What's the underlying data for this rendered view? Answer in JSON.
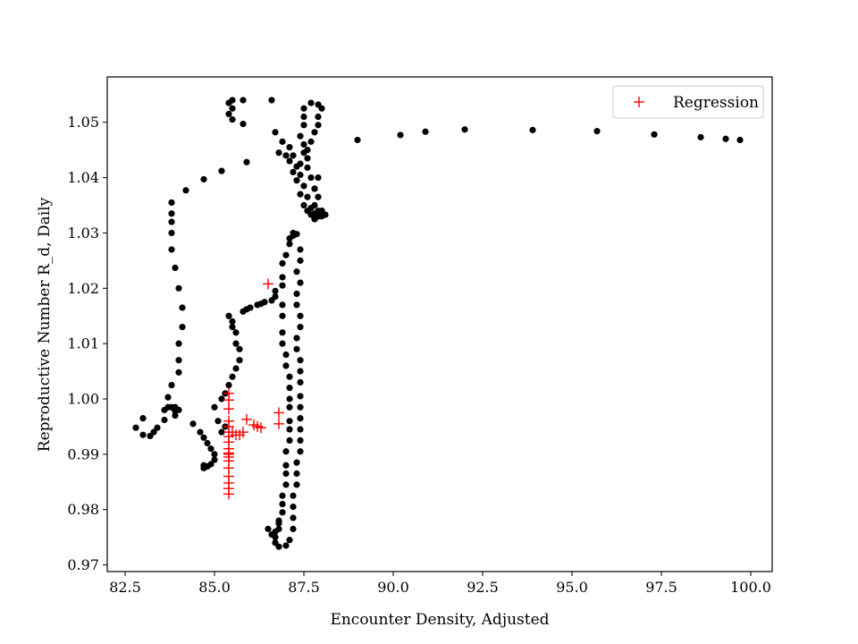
{
  "chart_data": {
    "type": "scatter",
    "title": "",
    "xlabel": "Encounter Density, Adjusted",
    "ylabel": "Reproductive Number R_d, Daily",
    "xlim": [
      82.0,
      100.6
    ],
    "ylim": [
      0.9688,
      1.0582
    ],
    "xticks": [
      82.5,
      85.0,
      87.5,
      90.0,
      92.5,
      95.0,
      97.5,
      100.0
    ],
    "yticks": [
      0.97,
      0.98,
      0.99,
      1.0,
      1.01,
      1.02,
      1.03,
      1.04,
      1.05
    ],
    "xtick_labels": [
      "82.5",
      "85.0",
      "87.5",
      "90.0",
      "92.5",
      "95.0",
      "97.5",
      "100.0"
    ],
    "ytick_labels": [
      "0.97",
      "0.98",
      "0.99",
      "1.00",
      "1.01",
      "1.02",
      "1.03",
      "1.04",
      "1.05"
    ],
    "grid": false,
    "legend": {
      "placement": "top-right",
      "entries": [
        "Regression"
      ]
    },
    "series": [
      {
        "name": "",
        "marker": "dot",
        "color": "#000000",
        "points": [
          [
            82.8,
            0.9948
          ],
          [
            83.0,
            0.9965
          ],
          [
            83.0,
            0.9935
          ],
          [
            83.2,
            0.9933
          ],
          [
            83.3,
            0.994
          ],
          [
            83.4,
            0.9948
          ],
          [
            83.6,
            0.9962
          ],
          [
            83.6,
            0.998
          ],
          [
            83.7,
            0.9985
          ],
          [
            83.7,
            1.0003
          ],
          [
            83.8,
            0.9985
          ],
          [
            83.9,
            0.9978
          ],
          [
            83.9,
            0.997
          ],
          [
            83.9,
            0.9985
          ],
          [
            84.0,
            0.998
          ],
          [
            83.8,
            1.0025
          ],
          [
            84.0,
            1.0048
          ],
          [
            84.0,
            1.007
          ],
          [
            84.0,
            1.01
          ],
          [
            84.1,
            1.013
          ],
          [
            84.1,
            1.0165
          ],
          [
            84.0,
            1.02
          ],
          [
            83.9,
            1.0237
          ],
          [
            83.8,
            1.027
          ],
          [
            83.8,
            1.03
          ],
          [
            83.8,
            1.032
          ],
          [
            83.8,
            1.0335
          ],
          [
            83.8,
            1.0355
          ],
          [
            84.2,
            1.0377
          ],
          [
            84.7,
            1.0397
          ],
          [
            85.2,
            1.0412
          ],
          [
            85.9,
            1.0428
          ],
          [
            84.4,
            0.9955
          ],
          [
            84.6,
            0.994
          ],
          [
            84.7,
            0.993
          ],
          [
            84.8,
            0.992
          ],
          [
            84.9,
            0.991
          ],
          [
            85.0,
            0.99
          ],
          [
            85.0,
            0.989
          ],
          [
            84.7,
            0.988
          ],
          [
            84.8,
            0.9878
          ],
          [
            84.9,
            0.9882
          ],
          [
            84.7,
            0.9875
          ],
          [
            85.0,
            0.9985
          ],
          [
            85.1,
            0.996
          ],
          [
            85.2,
            0.994
          ],
          [
            85.3,
            0.995
          ],
          [
            85.2,
            1.0
          ],
          [
            85.3,
            1.001
          ],
          [
            85.4,
            1.0025
          ],
          [
            85.5,
            1.004
          ],
          [
            85.6,
            1.0055
          ],
          [
            85.7,
            1.007
          ],
          [
            85.7,
            1.009
          ],
          [
            85.6,
            1.01
          ],
          [
            85.6,
            1.012
          ],
          [
            85.5,
            1.013
          ],
          [
            85.5,
            1.014
          ],
          [
            85.4,
            1.015
          ],
          [
            85.8,
            1.0158
          ],
          [
            85.9,
            1.0162
          ],
          [
            86.0,
            1.0165
          ],
          [
            86.2,
            1.017
          ],
          [
            86.3,
            1.0172
          ],
          [
            86.4,
            1.0175
          ],
          [
            86.6,
            1.0178
          ],
          [
            86.7,
            1.0185
          ],
          [
            86.7,
            1.0195
          ],
          [
            86.9,
            1.0205
          ],
          [
            86.9,
            1.022
          ],
          [
            86.9,
            1.0245
          ],
          [
            87.0,
            1.026
          ],
          [
            87.1,
            1.028
          ],
          [
            87.2,
            1.0295
          ],
          [
            87.3,
            1.0298
          ],
          [
            87.2,
            1.03
          ],
          [
            87.1,
            1.029
          ],
          [
            87.4,
            1.027
          ],
          [
            87.4,
            1.025
          ],
          [
            87.3,
            1.023
          ],
          [
            87.4,
            1.021
          ],
          [
            87.3,
            1.019
          ],
          [
            87.3,
            1.017
          ],
          [
            87.4,
            1.015
          ],
          [
            87.4,
            1.013
          ],
          [
            87.3,
            1.011
          ],
          [
            87.3,
            1.009
          ],
          [
            87.4,
            1.007
          ],
          [
            87.4,
            1.005
          ],
          [
            87.4,
            1.003
          ],
          [
            87.4,
            1.0005
          ],
          [
            87.4,
            0.9985
          ],
          [
            87.4,
            0.9965
          ],
          [
            87.4,
            0.9945
          ],
          [
            87.4,
            0.9925
          ],
          [
            87.4,
            0.9905
          ],
          [
            87.3,
            0.9885
          ],
          [
            87.3,
            0.9865
          ],
          [
            87.3,
            0.9845
          ],
          [
            87.2,
            0.9825
          ],
          [
            87.2,
            0.9805
          ],
          [
            87.2,
            0.9785
          ],
          [
            87.2,
            0.9765
          ],
          [
            87.1,
            0.9745
          ],
          [
            87.0,
            0.9735
          ],
          [
            86.8,
            0.9733
          ],
          [
            86.7,
            0.974
          ],
          [
            86.6,
            0.9755
          ],
          [
            86.5,
            0.9765
          ],
          [
            86.7,
            0.976
          ],
          [
            86.8,
            0.9775
          ],
          [
            86.9,
            1.017
          ],
          [
            86.9,
            1.015
          ],
          [
            86.9,
            1.012
          ],
          [
            86.9,
            1.01
          ],
          [
            87.0,
            1.008
          ],
          [
            87.0,
            1.006
          ],
          [
            87.1,
            1.004
          ],
          [
            87.1,
            1.002
          ],
          [
            87.1,
            1.0
          ],
          [
            87.1,
            0.9985
          ],
          [
            87.1,
            0.996
          ],
          [
            87.1,
            0.9945
          ],
          [
            87.1,
            0.9925
          ],
          [
            87.0,
            0.9905
          ],
          [
            87.0,
            0.988
          ],
          [
            87.0,
            0.9865
          ],
          [
            87.0,
            0.9845
          ],
          [
            86.9,
            0.9825
          ],
          [
            86.9,
            0.981
          ],
          [
            86.9,
            0.9795
          ],
          [
            86.8,
            0.978
          ],
          [
            86.8,
            0.9765
          ],
          [
            86.7,
            0.975
          ],
          [
            85.4,
            1.0535
          ],
          [
            85.5,
            1.0525
          ],
          [
            85.4,
            1.0515
          ],
          [
            85.5,
            1.0505
          ],
          [
            85.5,
            1.054
          ],
          [
            85.8,
            1.054
          ],
          [
            85.8,
            1.0497
          ],
          [
            86.6,
            1.054
          ],
          [
            86.7,
            1.0482
          ],
          [
            86.8,
            1.0445
          ],
          [
            87.0,
            1.044
          ],
          [
            87.1,
            1.043
          ],
          [
            87.2,
            1.041
          ],
          [
            87.3,
            1.0395
          ],
          [
            87.4,
            1.037
          ],
          [
            87.5,
            1.035
          ],
          [
            87.6,
            1.034
          ],
          [
            87.7,
            1.0333
          ],
          [
            87.8,
            1.0325
          ],
          [
            87.8,
            1.0335
          ],
          [
            87.9,
            1.033
          ],
          [
            88.0,
            1.034
          ],
          [
            87.5,
            1.0525
          ],
          [
            87.5,
            1.051
          ],
          [
            87.5,
            1.0495
          ],
          [
            87.4,
            1.0475
          ],
          [
            87.5,
            1.046
          ],
          [
            87.5,
            1.0445
          ],
          [
            87.4,
            1.0425
          ],
          [
            87.4,
            1.0405
          ],
          [
            87.5,
            1.0385
          ],
          [
            87.6,
            1.0365
          ],
          [
            87.7,
            1.0345
          ],
          [
            87.8,
            1.0325
          ],
          [
            86.9,
            1.0465
          ],
          [
            87.1,
            1.0455
          ],
          [
            87.2,
            1.044
          ],
          [
            87.3,
            1.042
          ],
          [
            87.7,
            1.0535
          ],
          [
            87.9,
            1.0532
          ],
          [
            88.0,
            1.0525
          ],
          [
            87.9,
            1.051
          ],
          [
            87.9,
            1.0495
          ],
          [
            87.8,
            1.0482
          ],
          [
            87.7,
            1.0465
          ],
          [
            87.6,
            1.045
          ],
          [
            87.6,
            1.0435
          ],
          [
            87.6,
            1.0418
          ],
          [
            87.7,
            1.04
          ],
          [
            87.8,
            1.038
          ],
          [
            87.9,
            1.0365
          ],
          [
            87.8,
            1.035
          ],
          [
            87.9,
            1.034
          ],
          [
            88.0,
            1.033
          ],
          [
            88.1,
            1.0333
          ],
          [
            87.9,
            1.04
          ],
          [
            87.8,
            1.038
          ],
          [
            88.0,
            1.034
          ],
          [
            89.0,
            1.0468
          ],
          [
            90.2,
            1.0477
          ],
          [
            90.9,
            1.0483
          ],
          [
            92.0,
            1.0487
          ],
          [
            93.9,
            1.0486
          ],
          [
            95.7,
            1.0484
          ],
          [
            97.3,
            1.0478
          ],
          [
            98.6,
            1.0473
          ],
          [
            99.3,
            1.047
          ],
          [
            99.7,
            1.0468
          ]
        ]
      },
      {
        "name": "Regression",
        "marker": "plus",
        "color": "#ff0000",
        "points": [
          [
            86.5,
            1.0208
          ],
          [
            85.4,
            1.001
          ],
          [
            85.4,
            0.9998
          ],
          [
            85.4,
            0.9982
          ],
          [
            85.4,
            0.996
          ],
          [
            85.4,
            0.995
          ],
          [
            85.4,
            0.994
          ],
          [
            85.4,
            0.9932
          ],
          [
            85.4,
            0.9922
          ],
          [
            85.4,
            0.991
          ],
          [
            85.4,
            0.99
          ],
          [
            85.4,
            0.9888
          ],
          [
            85.4,
            0.9875
          ],
          [
            85.4,
            0.986
          ],
          [
            85.4,
            0.9848
          ],
          [
            85.4,
            0.9838
          ],
          [
            85.4,
            0.9828
          ],
          [
            85.4,
            0.9902
          ],
          [
            85.4,
            0.9895
          ],
          [
            85.5,
            0.994
          ],
          [
            85.6,
            0.9935
          ],
          [
            85.7,
            0.9935
          ],
          [
            85.8,
            0.994
          ],
          [
            85.9,
            0.9963
          ],
          [
            86.1,
            0.9953
          ],
          [
            86.2,
            0.995
          ],
          [
            86.3,
            0.9948
          ],
          [
            86.8,
            0.9975
          ],
          [
            86.8,
            0.9955
          ]
        ]
      }
    ]
  }
}
